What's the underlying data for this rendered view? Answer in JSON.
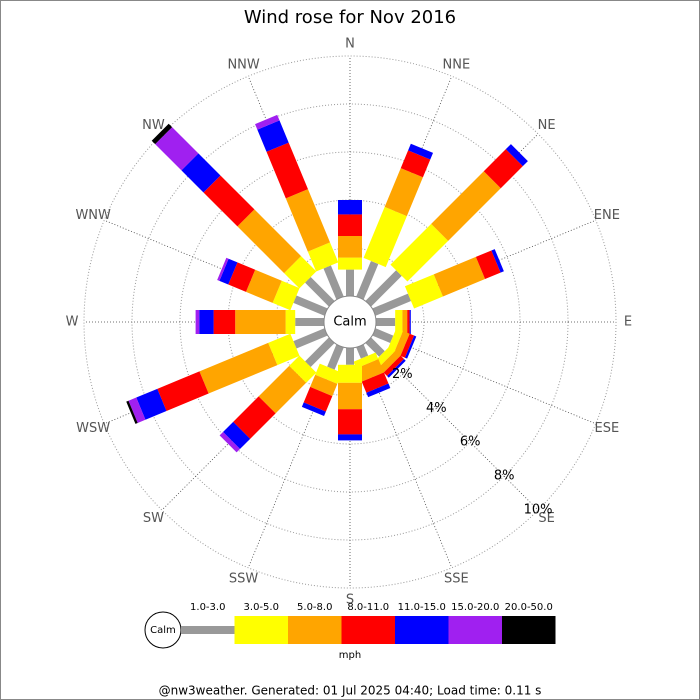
{
  "chart_data": {
    "type": "windrose",
    "title": "Wind rose for Nov 2016",
    "categories": [
      "N",
      "NNE",
      "NE",
      "ENE",
      "E",
      "ESE",
      "SE",
      "SSE",
      "S",
      "SSW",
      "SW",
      "WSW",
      "W",
      "WNW",
      "NW",
      "NNW"
    ],
    "series": [
      {
        "name": "1.0-3.0",
        "color": "#999999",
        "values": [
          1.1,
          1.6,
          1.8,
          1.6,
          0.8,
          0.8,
          0.8,
          0.5,
          0.7,
          1.0,
          1.4,
          1.4,
          1.2,
          1.4,
          1.4,
          1.4
        ]
      },
      {
        "name": "3.0-5.0",
        "color": "#ffff00",
        "values": [
          0.5,
          2.3,
          2.4,
          1.3,
          0.3,
          0.3,
          0.3,
          0.3,
          0.75,
          0.5,
          0.6,
          1.0,
          0.4,
          0.8,
          0.9,
          0.9
        ]
      },
      {
        "name": "5.0-8.0",
        "color": "#ffa500",
        "values": [
          0.9,
          1.75,
          3.1,
          1.9,
          0.2,
          0.3,
          0.3,
          0.6,
          1.1,
          0.55,
          1.8,
          3.1,
          2.1,
          1.2,
          2.75,
          2.4
        ]
      },
      {
        "name": "8.0-11.0",
        "color": "#ff0000",
        "values": [
          0.9,
          0.8,
          1.3,
          0.7,
          0.1,
          0.2,
          0.2,
          0.5,
          1.05,
          0.7,
          1.5,
          1.9,
          0.9,
          0.8,
          2.0,
          2.1
        ]
      },
      {
        "name": "11.0-15.0",
        "color": "#0000ff",
        "values": [
          0.6,
          0.3,
          0.3,
          0.15,
          0.05,
          0.1,
          0.1,
          0.2,
          0.25,
          0.2,
          0.6,
          0.95,
          0.6,
          0.4,
          1.3,
          1.0
        ]
      },
      {
        "name": "15.0-20.0",
        "color": "#a020f0",
        "values": [
          0,
          0,
          0,
          0,
          0,
          0,
          0,
          0,
          0,
          0,
          0.2,
          0.35,
          0.15,
          0.1,
          1.55,
          0.25
        ]
      },
      {
        "name": "20.0-50.0",
        "color": "#000000",
        "values": [
          0,
          0,
          0,
          0,
          0,
          0,
          0,
          0,
          0,
          0,
          0,
          0.1,
          0,
          0,
          0.2,
          0
        ]
      }
    ],
    "ylim": [
      0,
      10
    ],
    "yticks": [
      {
        "value": 2,
        "label": "2%"
      },
      {
        "value": 4,
        "label": "4%"
      },
      {
        "value": 6,
        "label": "6%"
      },
      {
        "value": 8,
        "label": "8%"
      },
      {
        "value": 10,
        "label": "10%"
      }
    ],
    "calm_label": "Calm",
    "legend_unit": "mph",
    "footer": "@nw3weather. Generated: 01 Jul 2025 04:40; Load time: 0.11 s"
  }
}
